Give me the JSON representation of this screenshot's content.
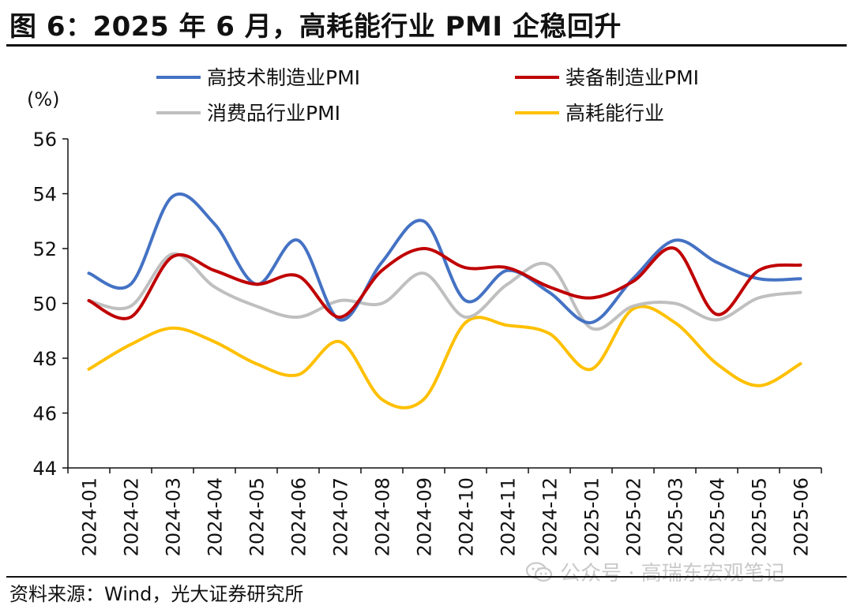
{
  "title": "图 6：2025 年 6 月，高耗能行业 PMI 企稳回升",
  "source": "资料来源：Wind，光大证券研究所",
  "watermark": "公众号 · 高瑞东宏观笔记",
  "watermark_icon": "wechat-icon",
  "chart_data": {
    "type": "line",
    "ylabel": "(%)",
    "ylim": [
      44,
      56
    ],
    "yticks": [
      44,
      46,
      48,
      50,
      52,
      54,
      56
    ],
    "grid": false,
    "legend": "top",
    "categories": [
      "2024-01",
      "2024-02",
      "2024-03",
      "2024-04",
      "2024-05",
      "2024-06",
      "2024-07",
      "2024-08",
      "2024-09",
      "2024-10",
      "2024-11",
      "2024-12",
      "2025-01",
      "2025-02",
      "2025-03",
      "2025-04",
      "2025-05",
      "2025-06"
    ],
    "series": [
      {
        "name": "高技术制造业PMI",
        "color": "#4472C4",
        "values": [
          51.1,
          50.7,
          53.9,
          52.9,
          50.7,
          52.3,
          49.4,
          51.5,
          53.0,
          50.1,
          51.2,
          50.4,
          49.3,
          50.9,
          52.3,
          51.5,
          50.9,
          50.9
        ]
      },
      {
        "name": "装备制造业PMI",
        "color": "#C00000",
        "values": [
          50.1,
          49.5,
          51.7,
          51.2,
          50.7,
          51.0,
          49.5,
          51.2,
          52.0,
          51.3,
          51.3,
          50.6,
          50.2,
          50.8,
          52.0,
          49.6,
          51.2,
          51.4
        ]
      },
      {
        "name": "消费品行业PMI",
        "color": "#BFBFBF",
        "values": [
          50.1,
          49.9,
          51.8,
          50.6,
          49.9,
          49.5,
          50.1,
          50.0,
          51.1,
          49.5,
          50.7,
          51.4,
          49.1,
          49.9,
          50.0,
          49.4,
          50.2,
          50.4
        ]
      },
      {
        "name": "高耗能行业",
        "color": "#FFC000",
        "values": [
          47.6,
          48.5,
          49.1,
          48.6,
          47.8,
          47.4,
          48.6,
          46.5,
          46.5,
          49.3,
          49.2,
          48.9,
          47.6,
          49.8,
          49.3,
          47.8,
          47.0,
          47.8
        ]
      }
    ]
  }
}
